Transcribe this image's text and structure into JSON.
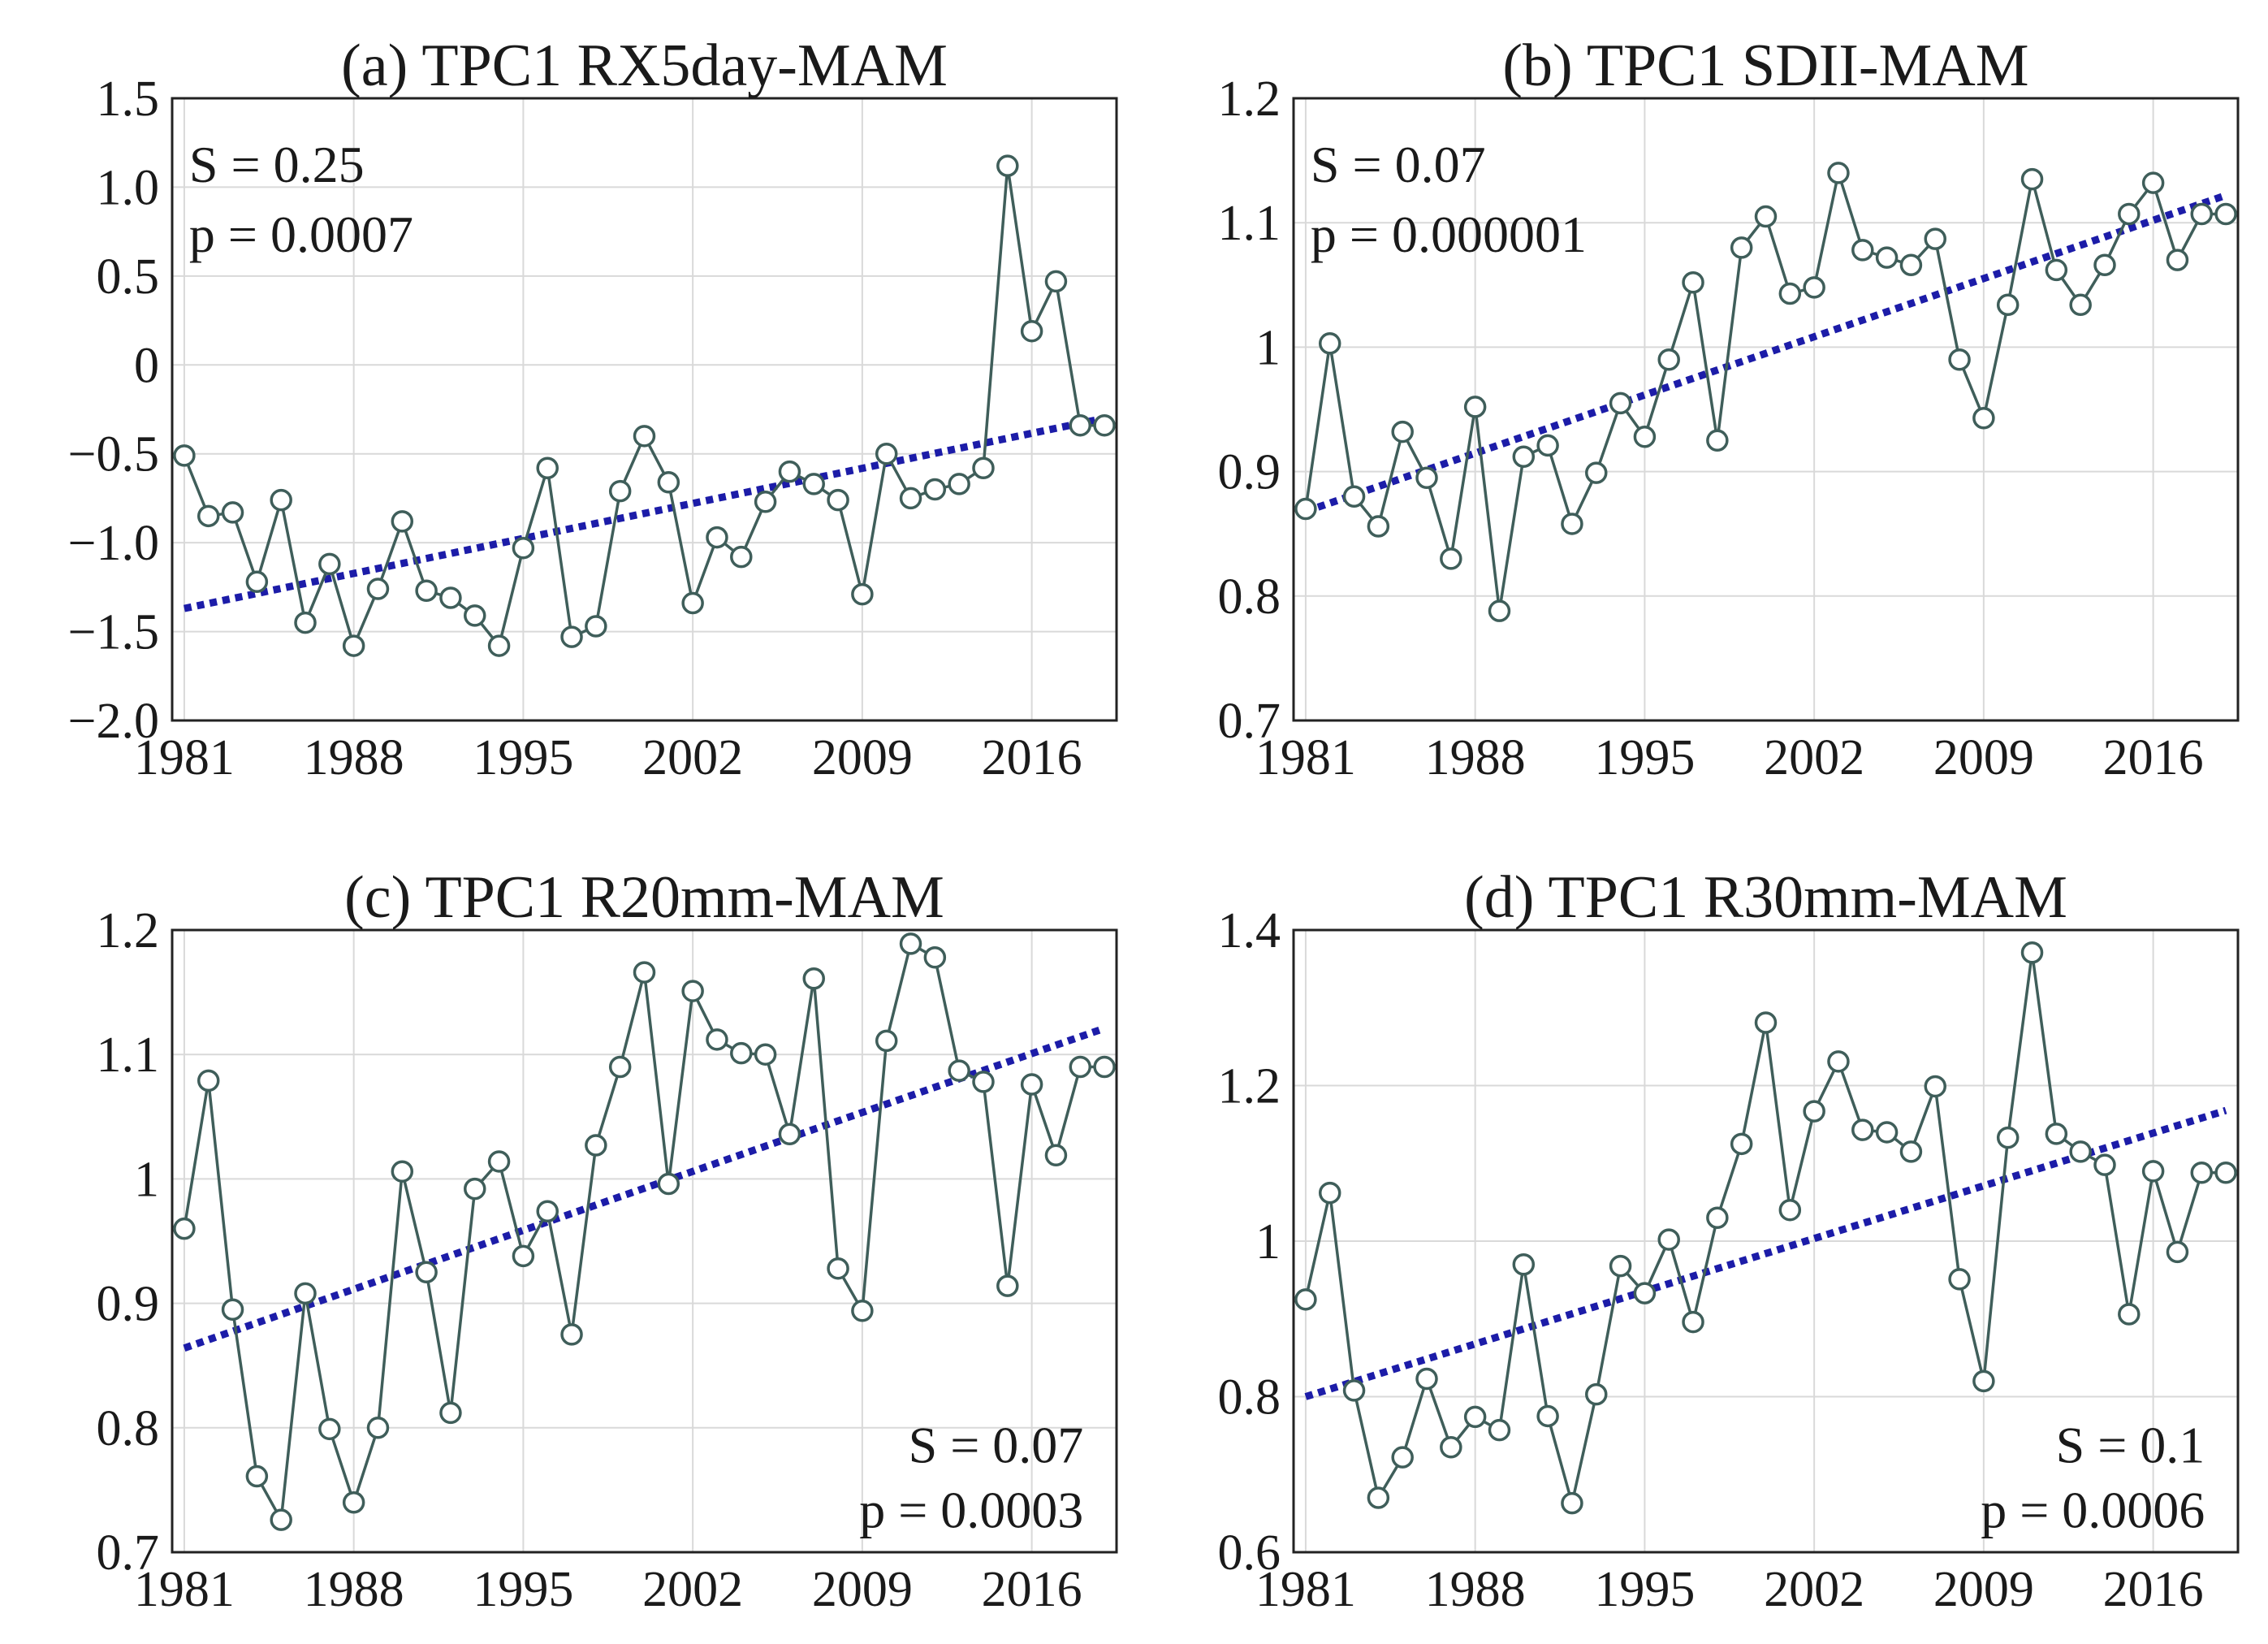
{
  "chart_data": [
    {
      "type": "line",
      "title": "(a) TPC1 RX5day-MAM",
      "x": [
        1981,
        1982,
        1983,
        1984,
        1985,
        1986,
        1987,
        1988,
        1989,
        1990,
        1991,
        1992,
        1993,
        1994,
        1995,
        1996,
        1997,
        1998,
        1999,
        2000,
        2001,
        2002,
        2003,
        2004,
        2005,
        2006,
        2007,
        2008,
        2009,
        2010,
        2011,
        2012,
        2013,
        2014,
        2015,
        2016,
        2017,
        2018,
        2019
      ],
      "values": [
        -0.51,
        -0.85,
        -0.83,
        -1.22,
        -0.76,
        -1.45,
        -1.12,
        -1.58,
        -1.26,
        -0.88,
        -1.27,
        -1.31,
        -1.41,
        -1.58,
        -1.03,
        -0.58,
        -1.53,
        -1.47,
        -0.71,
        -0.4,
        -0.66,
        -1.34,
        -0.97,
        -1.08,
        -0.77,
        -0.6,
        -0.67,
        -0.76,
        -1.29,
        -0.5,
        -0.75,
        -0.7,
        -0.67,
        -0.58,
        1.12,
        0.19,
        0.47,
        -0.34,
        -0.34
      ],
      "trend": {
        "start": [
          1981,
          -1.37
        ],
        "end": [
          2019,
          -0.3
        ]
      },
      "xticks": [
        "1981",
        "1988",
        "1995",
        "2002",
        "2009",
        "2016"
      ],
      "yticks": [
        "−2.0",
        "−1.5",
        "−1.0",
        "−0.5",
        "0",
        "0.5",
        "1.0",
        "1.5"
      ],
      "ylim": [
        -2.0,
        1.5
      ],
      "xlim": [
        1980.5,
        2019.5
      ],
      "stat_S": "S = 0.25",
      "stat_p": "p = 0.0007",
      "stat_position": "top-left"
    },
    {
      "type": "line",
      "title": "(b) TPC1 SDII-MAM",
      "x": [
        1981,
        1982,
        1983,
        1984,
        1985,
        1986,
        1987,
        1988,
        1989,
        1990,
        1991,
        1992,
        1993,
        1994,
        1995,
        1996,
        1997,
        1998,
        1999,
        2000,
        2001,
        2002,
        2003,
        2004,
        2005,
        2006,
        2007,
        2008,
        2009,
        2010,
        2011,
        2012,
        2013,
        2014,
        2015,
        2016,
        2017,
        2018,
        2019
      ],
      "values": [
        0.87,
        1.003,
        0.88,
        0.856,
        0.932,
        0.895,
        0.83,
        0.952,
        0.788,
        0.912,
        0.921,
        0.858,
        0.899,
        0.955,
        0.928,
        0.99,
        1.052,
        0.925,
        1.08,
        1.105,
        1.043,
        1.048,
        1.14,
        1.078,
        1.072,
        1.066,
        1.087,
        0.99,
        0.943,
        1.034,
        1.135,
        1.062,
        1.034,
        1.066,
        1.107,
        1.132,
        1.07,
        1.107,
        1.107
      ],
      "trend": {
        "start": [
          1981,
          0.868
        ],
        "end": [
          2019,
          1.122
        ]
      },
      "xticks": [
        "1981",
        "1988",
        "1995",
        "2002",
        "2009",
        "2016"
      ],
      "yticks": [
        "0.7",
        "0.8",
        "0.9",
        "1",
        "1.1",
        "1.2"
      ],
      "ylim": [
        0.7,
        1.2
      ],
      "xlim": [
        1980.5,
        2019.5
      ],
      "stat_S": "S = 0.07",
      "stat_p": "p = 0.000001",
      "stat_position": "top-left"
    },
    {
      "type": "line",
      "title": "(c) TPC1 R20mm-MAM",
      "x": [
        1981,
        1982,
        1983,
        1984,
        1985,
        1986,
        1987,
        1988,
        1989,
        1990,
        1991,
        1992,
        1993,
        1994,
        1995,
        1996,
        1997,
        1998,
        1999,
        2000,
        2001,
        2002,
        2003,
        2004,
        2005,
        2006,
        2007,
        2008,
        2009,
        2010,
        2011,
        2012,
        2013,
        2014,
        2015,
        2016,
        2017,
        2018,
        2019
      ],
      "values": [
        0.96,
        1.079,
        0.895,
        0.761,
        0.726,
        0.908,
        0.799,
        0.74,
        0.8,
        1.006,
        0.925,
        0.812,
        0.992,
        1.014,
        0.938,
        0.974,
        0.875,
        1.027,
        1.09,
        1.166,
        0.996,
        1.151,
        1.112,
        1.101,
        1.1,
        1.036,
        1.161,
        0.928,
        0.894,
        1.111,
        1.189,
        1.178,
        1.087,
        1.078,
        0.914,
        1.076,
        1.019,
        1.09,
        1.09
      ],
      "trend": {
        "start": [
          1981,
          0.864
        ],
        "end": [
          2019,
          1.121
        ]
      },
      "xticks": [
        "1981",
        "1988",
        "1995",
        "2002",
        "2009",
        "2016"
      ],
      "yticks": [
        "0.7",
        "0.8",
        "0.9",
        "1",
        "1.1",
        "1.2"
      ],
      "ylim": [
        0.7,
        1.2
      ],
      "xlim": [
        1980.5,
        2019.5
      ],
      "stat_S": "S = 0.07",
      "stat_p": "p = 0.0003",
      "stat_position": "bottom-right"
    },
    {
      "type": "line",
      "title": "(d) TPC1 R30mm-MAM",
      "x": [
        1981,
        1982,
        1983,
        1984,
        1985,
        1986,
        1987,
        1988,
        1989,
        1990,
        1991,
        1992,
        1993,
        1994,
        1995,
        1996,
        1997,
        1998,
        1999,
        2000,
        2001,
        2002,
        2003,
        2004,
        2005,
        2006,
        2007,
        2008,
        2009,
        2010,
        2011,
        2012,
        2013,
        2014,
        2015,
        2016,
        2017,
        2018,
        2019
      ],
      "values": [
        0.925,
        1.062,
        0.808,
        0.67,
        0.722,
        0.823,
        0.735,
        0.774,
        0.757,
        0.97,
        0.775,
        0.663,
        0.803,
        0.968,
        0.933,
        1.002,
        0.896,
        1.03,
        1.125,
        1.281,
        1.04,
        1.167,
        1.231,
        1.143,
        1.14,
        1.115,
        1.199,
        0.951,
        0.82,
        1.133,
        1.371,
        1.138,
        1.115,
        1.098,
        0.906,
        1.09,
        0.986,
        1.088,
        1.088
      ],
      "trend": {
        "start": [
          1981,
          0.8
        ],
        "end": [
          2019,
          1.168
        ]
      },
      "xticks": [
        "1981",
        "1988",
        "1995",
        "2002",
        "2009",
        "2016"
      ],
      "yticks": [
        "0.6",
        "0.8",
        "1",
        "1.2",
        "1.4"
      ],
      "ylim": [
        0.6,
        1.4
      ],
      "xlim": [
        1980.5,
        2019.5
      ],
      "stat_S": "S = 0.1",
      "stat_p": "p = 0.0006",
      "stat_position": "bottom-right"
    }
  ]
}
